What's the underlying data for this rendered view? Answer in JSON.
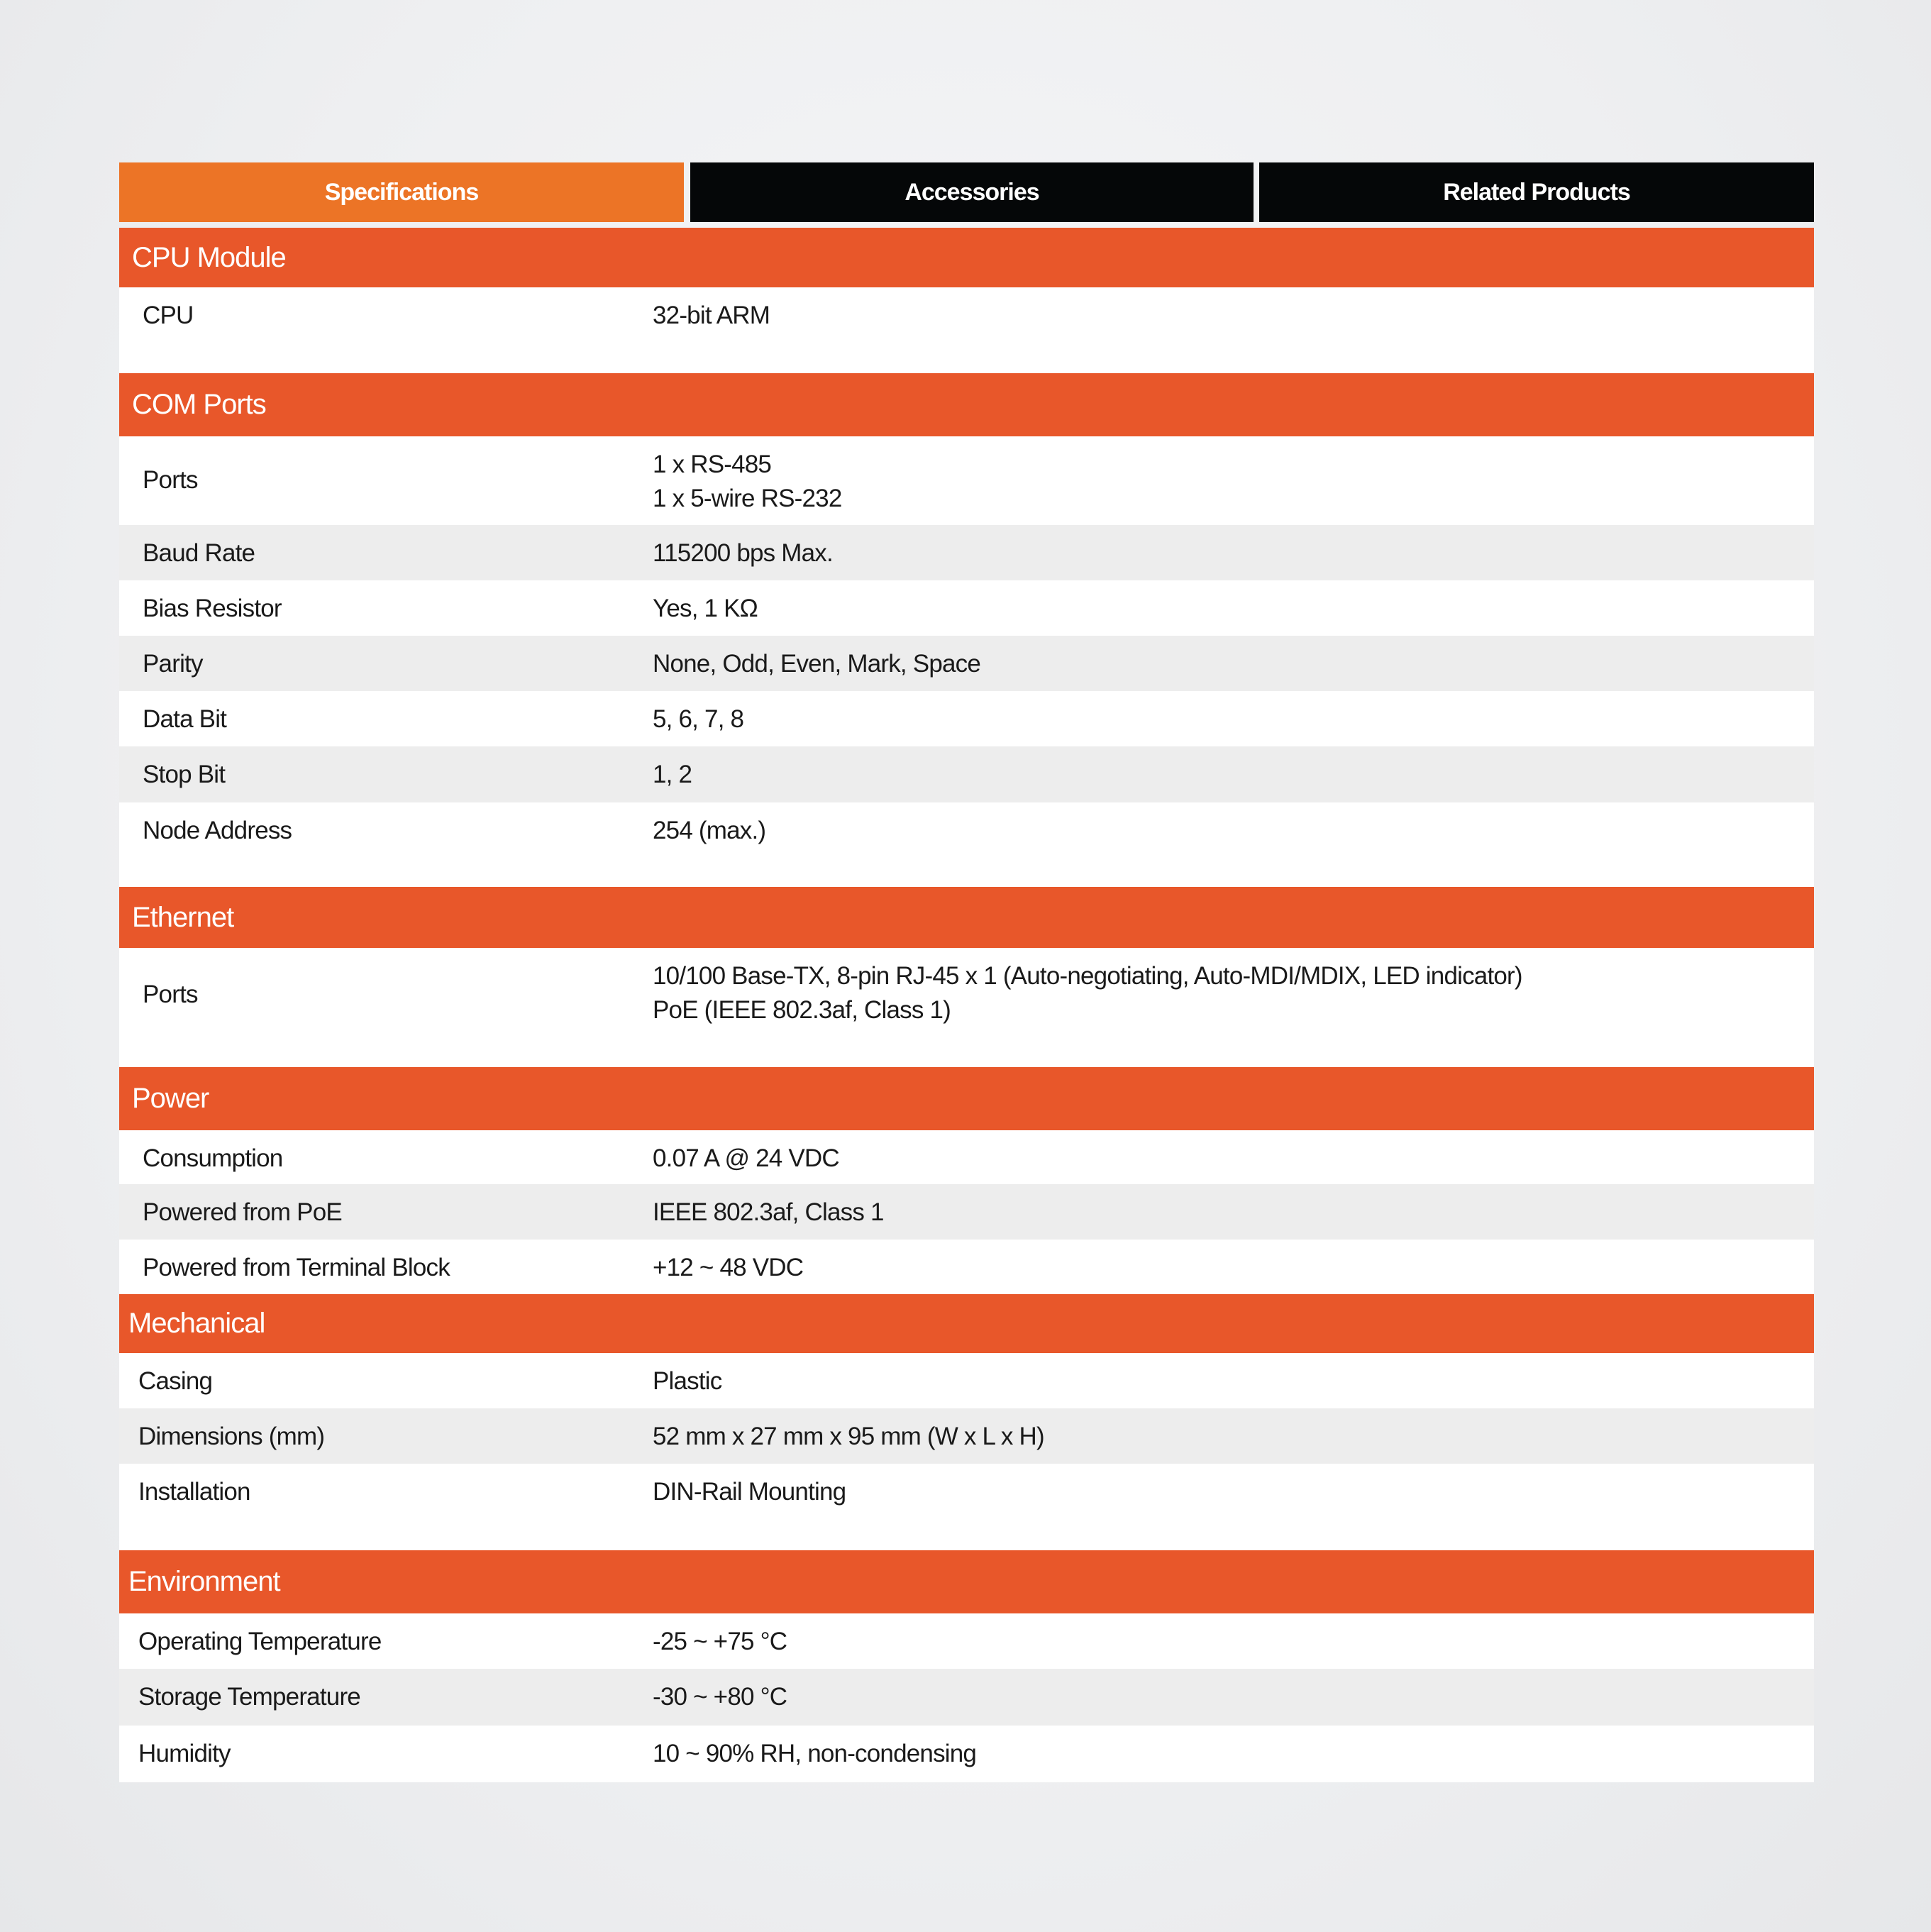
{
  "tabs": [
    {
      "label": "Specifications",
      "active": true
    },
    {
      "label": "Accessories",
      "active": false
    },
    {
      "label": "Related Products",
      "active": false
    }
  ],
  "colors": {
    "active_tab": "#ec7426",
    "inactive_tab": "#050708",
    "section_header": "#e8572a",
    "alt_row": "#ededed"
  },
  "sections": [
    {
      "title": "CPU Module",
      "rows": [
        {
          "label": "CPU",
          "value": "32-bit ARM"
        }
      ]
    },
    {
      "title": "COM Ports",
      "rows": [
        {
          "label": "Ports",
          "value": [
            "1 x RS-485",
            "1 x 5-wire RS-232"
          ]
        },
        {
          "label": "Baud Rate",
          "value": "115200 bps Max."
        },
        {
          "label": "Bias Resistor",
          "value": "Yes, 1 KΩ"
        },
        {
          "label": "Parity",
          "value": "None, Odd, Even, Mark, Space"
        },
        {
          "label": "Data Bit",
          "value": "5, 6, 7, 8"
        },
        {
          "label": "Stop Bit",
          "value": "1, 2"
        },
        {
          "label": "Node Address",
          "value": "254 (max.)"
        }
      ]
    },
    {
      "title": "Ethernet",
      "rows": [
        {
          "label": "Ports",
          "value": [
            "10/100 Base-TX, 8-pin RJ-45 x 1 (Auto-negotiating, Auto-MDI/MDIX, LED indicator)",
            "PoE (IEEE 802.3af, Class 1)"
          ]
        }
      ]
    },
    {
      "title": "Power",
      "rows": [
        {
          "label": "Consumption",
          "value": "0.07 A @ 24 VDC"
        },
        {
          "label": "Powered from PoE",
          "value": "IEEE 802.3af, Class 1"
        },
        {
          "label": "Powered from Terminal Block",
          "value": "+12 ~ 48 VDC"
        }
      ]
    },
    {
      "title": "Mechanical",
      "rows": [
        {
          "label": "Casing",
          "value": "Plastic"
        },
        {
          "label": "Dimensions (mm)",
          "value": "52 mm x 27 mm x 95 mm (W x L x H)"
        },
        {
          "label": "Installation",
          "value": "DIN-Rail Mounting"
        }
      ]
    },
    {
      "title": "Environment",
      "rows": [
        {
          "label": "Operating Temperature",
          "value": "-25 ~ +75 °C"
        },
        {
          "label": "Storage Temperature",
          "value": "-30 ~ +80 °C"
        },
        {
          "label": "Humidity",
          "value": "10 ~ 90% RH, non-condensing"
        }
      ]
    }
  ]
}
